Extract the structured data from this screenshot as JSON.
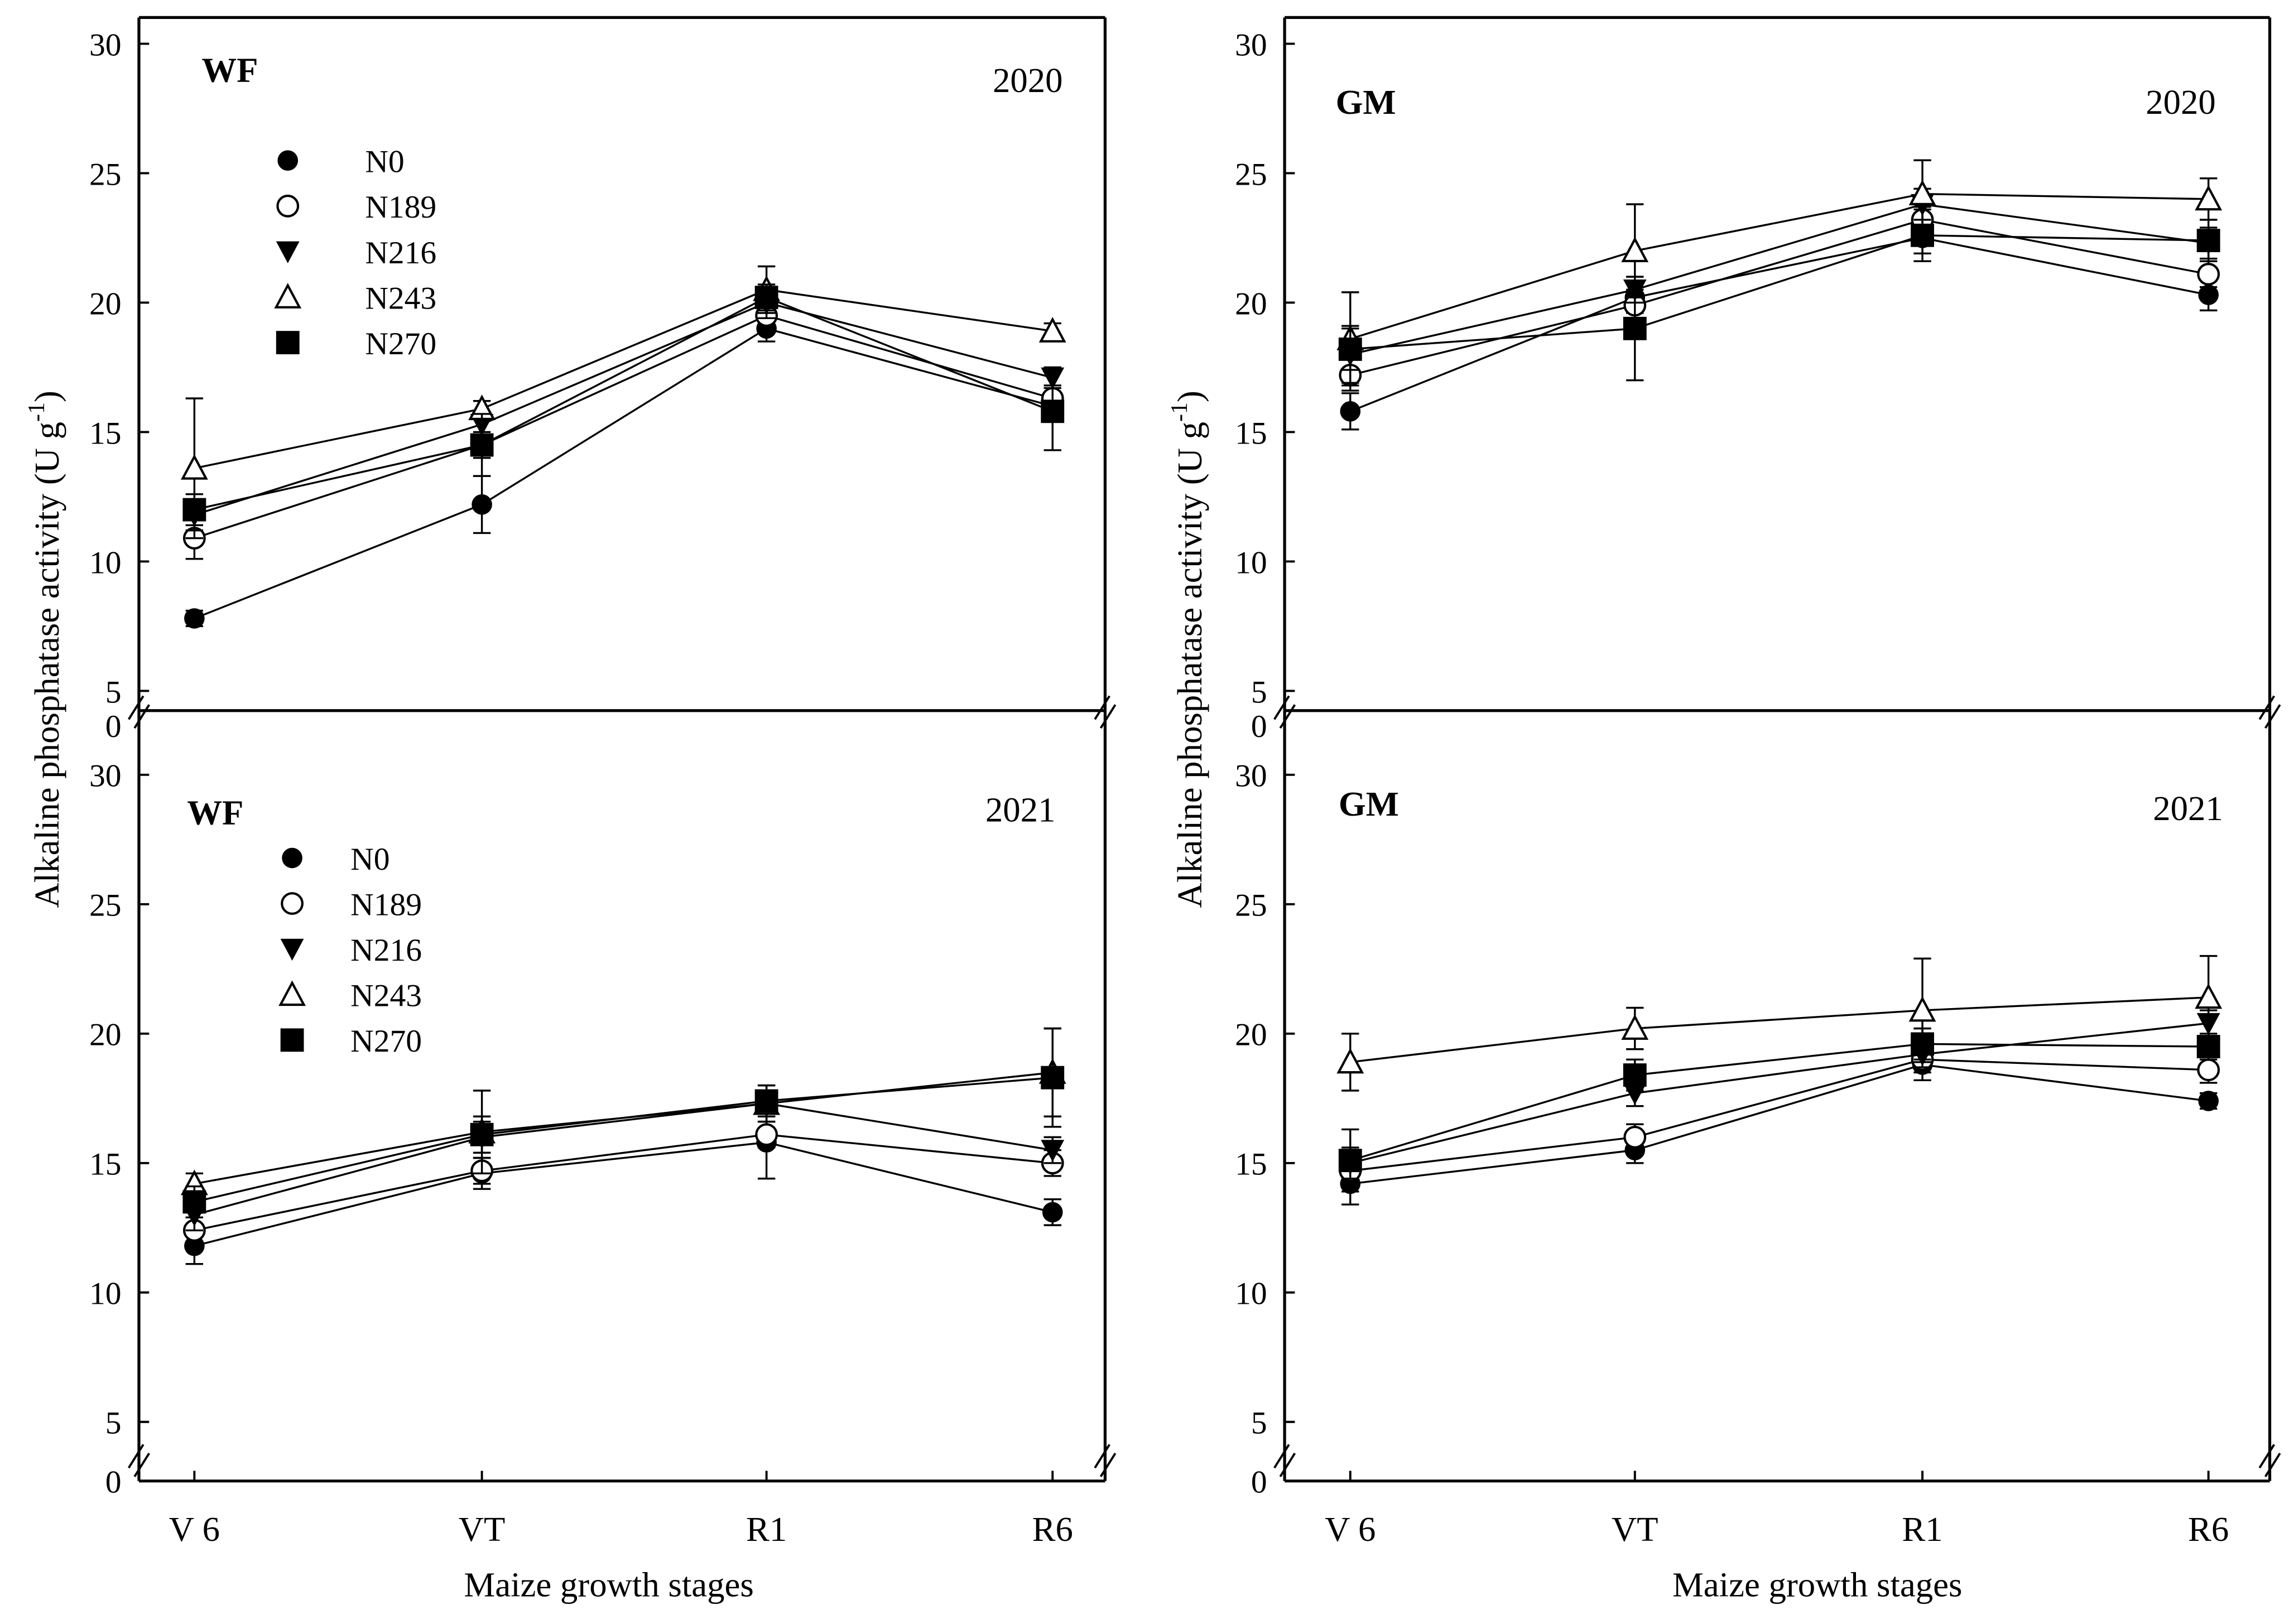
{
  "chart_data": [
    {
      "type": "line",
      "panel": "WF",
      "year": "2020",
      "categories": [
        "V 6",
        "VT",
        "R1",
        "R6"
      ],
      "series": [
        {
          "name": "N0",
          "values": [
            7.8,
            12.2,
            19.0,
            16.0
          ],
          "errors": [
            0.3,
            1.1,
            0.5,
            0.4
          ]
        },
        {
          "name": "N189",
          "values": [
            10.9,
            14.5,
            19.5,
            16.3
          ],
          "errors": [
            0.8,
            0.5,
            0.4,
            0.5
          ]
        },
        {
          "name": "N216",
          "values": [
            11.8,
            15.3,
            20.0,
            17.1
          ],
          "errors": [
            0.6,
            0.5,
            0.6,
            0.4
          ]
        },
        {
          "name": "N243",
          "values": [
            13.6,
            15.9,
            20.5,
            18.9
          ],
          "errors": [
            2.7,
            0.3,
            0.9,
            0.3
          ]
        },
        {
          "name": "N270",
          "values": [
            12.0,
            14.5,
            20.2,
            15.8
          ],
          "errors": [
            0.6,
            1.2,
            0.5,
            1.5
          ]
        }
      ]
    },
    {
      "type": "line",
      "panel": "GM",
      "year": "2020",
      "categories": [
        "V 6",
        "VT",
        "R1",
        "R6"
      ],
      "series": [
        {
          "name": "N0",
          "values": [
            15.8,
            20.2,
            22.5,
            20.3
          ],
          "errors": [
            0.7,
            0.6,
            0.6,
            0.6
          ]
        },
        {
          "name": "N189",
          "values": [
            17.2,
            19.9,
            23.2,
            21.1
          ],
          "errors": [
            0.6,
            0.6,
            0.5,
            0.5
          ]
        },
        {
          "name": "N216",
          "values": [
            18.0,
            20.5,
            23.8,
            22.3
          ],
          "errors": [
            1.1,
            0.5,
            0.6,
            0.6
          ]
        },
        {
          "name": "N243",
          "values": [
            18.6,
            22.0,
            24.2,
            24.0
          ],
          "errors": [
            1.8,
            1.8,
            1.3,
            0.8
          ]
        },
        {
          "name": "N270",
          "values": [
            18.2,
            19.0,
            22.6,
            22.4
          ],
          "errors": [
            0.8,
            2.0,
            1.0,
            0.8
          ]
        }
      ]
    },
    {
      "type": "line",
      "panel": "WF",
      "year": "2021",
      "categories": [
        "V 6",
        "VT",
        "R1",
        "R6"
      ],
      "series": [
        {
          "name": "N0",
          "values": [
            11.8,
            14.6,
            15.8,
            13.1
          ],
          "errors": [
            0.7,
            0.6,
            1.4,
            0.5
          ]
        },
        {
          "name": "N189",
          "values": [
            12.4,
            14.7,
            16.1,
            15.0
          ],
          "errors": [
            0.5,
            0.5,
            0.5,
            0.5
          ]
        },
        {
          "name": "N216",
          "values": [
            13.0,
            16.0,
            17.3,
            15.5
          ],
          "errors": [
            0.6,
            0.6,
            0.5,
            0.5
          ]
        },
        {
          "name": "N243",
          "values": [
            14.2,
            16.2,
            17.3,
            18.5
          ],
          "errors": [
            0.4,
            1.6,
            0.7,
            1.7
          ]
        },
        {
          "name": "N270",
          "values": [
            13.5,
            16.1,
            17.4,
            18.3
          ],
          "errors": [
            0.6,
            0.7,
            0.6,
            1.9
          ]
        }
      ]
    },
    {
      "type": "line",
      "panel": "GM",
      "year": "2021",
      "categories": [
        "V 6",
        "VT",
        "R1",
        "R6"
      ],
      "series": [
        {
          "name": "N0",
          "values": [
            14.2,
            15.5,
            18.8,
            17.4
          ],
          "errors": [
            0.8,
            0.5,
            0.6,
            0.3
          ]
        },
        {
          "name": "N189",
          "values": [
            14.7,
            16.0,
            19.0,
            18.6
          ],
          "errors": [
            0.5,
            0.5,
            0.5,
            0.5
          ]
        },
        {
          "name": "N216",
          "values": [
            15.0,
            17.7,
            19.2,
            20.4
          ],
          "errors": [
            0.6,
            0.5,
            0.5,
            0.5
          ]
        },
        {
          "name": "N243",
          "values": [
            18.9,
            20.2,
            20.9,
            21.4
          ],
          "errors": [
            1.1,
            0.8,
            2.0,
            1.6
          ]
        },
        {
          "name": "N270",
          "values": [
            15.1,
            18.4,
            19.6,
            19.5
          ],
          "errors": [
            1.2,
            0.6,
            0.6,
            0.5
          ]
        }
      ]
    }
  ],
  "y_ticks": [
    "0",
    "5",
    "10",
    "15",
    "20",
    "25",
    "30"
  ],
  "ylim": [
    0,
    30
  ],
  "ylabel": "Alkaline phosphatase  activity (U g",
  "ylabel_sup": "-1",
  "ylabel_close": ")",
  "xlabel": "Maize growth stages",
  "legend": [
    "N0",
    "N189",
    "N216",
    "N243",
    "N270"
  ]
}
